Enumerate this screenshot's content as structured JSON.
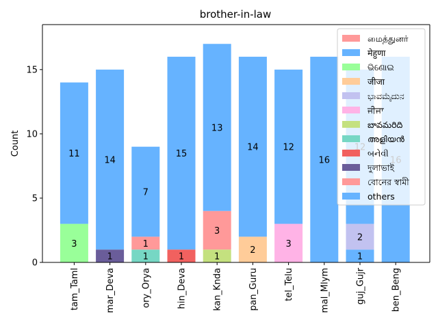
{
  "chart_data": {
    "type": "bar",
    "stacked": true,
    "title": "brother-in-law",
    "xlabel": "",
    "ylabel": "Count",
    "ylim": [
      0,
      18.5
    ],
    "yticks": [
      0,
      5,
      10,
      15
    ],
    "categories": [
      "tam_Taml",
      "mar_Deva",
      "ory_Orya",
      "hin_Deva",
      "kan_Knda",
      "pan_Guru",
      "tel_Telu",
      "mal_Mlym",
      "guj_Gujr",
      "ben_Beng"
    ],
    "legend_position": "top-right",
    "series": [
      {
        "name": "மைத்துனர்",
        "color": "#ff9999",
        "values": [
          0,
          0,
          0,
          0,
          0,
          0,
          0,
          0,
          0,
          0
        ]
      },
      {
        "name": "मेहुणा",
        "color": "#66b3ff",
        "values": [
          0,
          0,
          0,
          0,
          0,
          0,
          0,
          0,
          1,
          0
        ]
      },
      {
        "name": "ଭିଣୋଇ",
        "color": "#99ff99",
        "values": [
          3,
          0,
          0,
          0,
          0,
          0,
          0,
          0,
          0,
          0
        ]
      },
      {
        "name": "जीजा",
        "color": "#ffcc99",
        "values": [
          0,
          0,
          0,
          0,
          0,
          2,
          0,
          0,
          0,
          0
        ]
      },
      {
        "name": "ಭಾವಮೈದುನ",
        "color": "#c2c2f0",
        "values": [
          0,
          0,
          0,
          0,
          0,
          0,
          0,
          0,
          2,
          0
        ]
      },
      {
        "name": "ਜੀਜਾ",
        "color": "#ffb3e6",
        "values": [
          0,
          0,
          0,
          0,
          0,
          0,
          3,
          0,
          0,
          0
        ]
      },
      {
        "name": "బావమరిది",
        "color": "#c4e17f",
        "values": [
          0,
          0,
          0,
          0,
          1,
          0,
          0,
          0,
          0,
          0
        ]
      },
      {
        "name": "അളിയൻ",
        "color": "#76d7c4",
        "values": [
          0,
          0,
          1,
          0,
          0,
          0,
          0,
          0,
          0,
          0
        ]
      },
      {
        "name": "બનેવી",
        "color": "#f1615f",
        "values": [
          0,
          0,
          0,
          1,
          0,
          0,
          0,
          0,
          0,
          0
        ]
      },
      {
        "name": "দুলাভাই",
        "color": "#6a5d9a",
        "values": [
          0,
          1,
          0,
          0,
          0,
          0,
          0,
          0,
          0,
          0
        ]
      },
      {
        "name": "বোনের স্বামী",
        "color": "#ff9999",
        "values": [
          0,
          0,
          1,
          0,
          3,
          0,
          0,
          0,
          0,
          0
        ]
      },
      {
        "name": "others",
        "color": "#66b3ff",
        "values": [
          11,
          14,
          7,
          15,
          13,
          14,
          12,
          16,
          12,
          16
        ]
      }
    ]
  }
}
